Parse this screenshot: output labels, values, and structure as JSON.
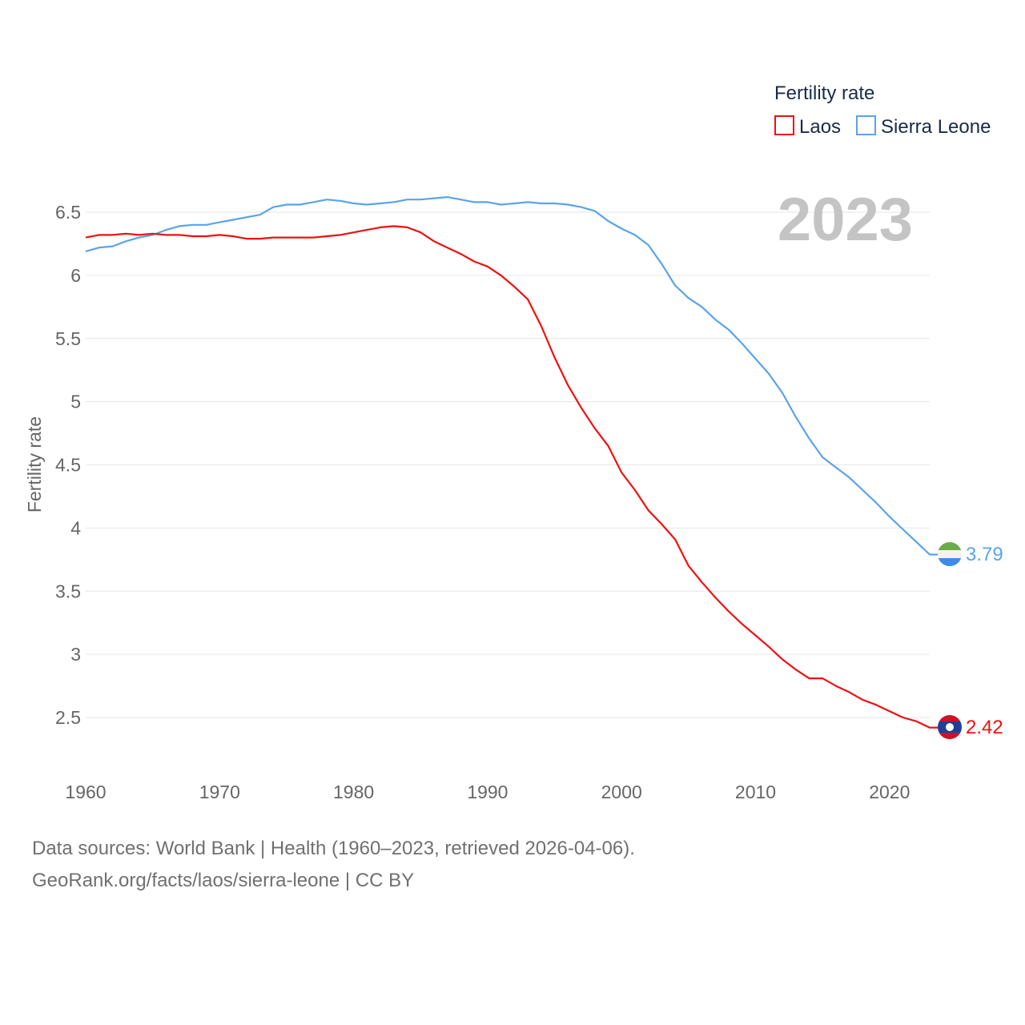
{
  "legend": {
    "title": "Fertility rate",
    "items": [
      {
        "label": "Laos",
        "color": "#ee1111"
      },
      {
        "label": "Sierra Leone",
        "color": "#5aa4e8"
      }
    ]
  },
  "year_label": "2023",
  "end_labels": {
    "laos": "2.42",
    "sierra_leone": "3.79"
  },
  "source": {
    "line1": "Data sources: World Bank | Health (1960–2023, retrieved 2026-04-06).",
    "line2": "GeoRank.org/facts/laos/sierra-leone | CC BY"
  },
  "chart_data": {
    "type": "line",
    "title": "Fertility rate",
    "xlabel": "",
    "ylabel": "Fertility rate",
    "xlim": [
      1960,
      2023
    ],
    "ylim": [
      2.2,
      6.8
    ],
    "xticks": [
      1960,
      1970,
      1980,
      1990,
      2000,
      2010,
      2020
    ],
    "yticks": [
      2.5,
      3,
      3.5,
      4,
      4.5,
      5,
      5.5,
      6,
      6.5
    ],
    "ytick_labels": [
      "2.5",
      "3",
      "3.5",
      "4",
      "4.5",
      "5",
      "5.5",
      "6",
      "6.5"
    ],
    "grid": true,
    "legend_position": "top-right",
    "x": [
      1960,
      1961,
      1962,
      1963,
      1964,
      1965,
      1966,
      1967,
      1968,
      1969,
      1970,
      1971,
      1972,
      1973,
      1974,
      1975,
      1976,
      1977,
      1978,
      1979,
      1980,
      1981,
      1982,
      1983,
      1984,
      1985,
      1986,
      1987,
      1988,
      1989,
      1990,
      1991,
      1992,
      1993,
      1994,
      1995,
      1996,
      1997,
      1998,
      1999,
      2000,
      2001,
      2002,
      2003,
      2004,
      2005,
      2006,
      2007,
      2008,
      2009,
      2010,
      2011,
      2012,
      2013,
      2014,
      2015,
      2016,
      2017,
      2018,
      2019,
      2020,
      2021,
      2022,
      2023
    ],
    "series": [
      {
        "name": "Laos",
        "color": "#ee1111",
        "values": [
          6.3,
          6.32,
          6.32,
          6.33,
          6.32,
          6.33,
          6.32,
          6.32,
          6.31,
          6.31,
          6.32,
          6.31,
          6.29,
          6.29,
          6.3,
          6.3,
          6.3,
          6.3,
          6.31,
          6.32,
          6.34,
          6.36,
          6.38,
          6.39,
          6.38,
          6.34,
          6.27,
          6.22,
          6.17,
          6.11,
          6.07,
          6.0,
          5.91,
          5.81,
          5.6,
          5.35,
          5.13,
          4.95,
          4.79,
          4.65,
          4.44,
          4.3,
          4.14,
          4.03,
          3.91,
          3.7,
          3.57,
          3.45,
          3.34,
          3.24,
          3.15,
          3.06,
          2.96,
          2.88,
          2.81,
          2.81,
          2.75,
          2.7,
          2.64,
          2.6,
          2.55,
          2.5,
          2.47,
          2.42
        ]
      },
      {
        "name": "Sierra Leone",
        "color": "#5aa4e8",
        "values": [
          6.19,
          6.22,
          6.23,
          6.27,
          6.3,
          6.32,
          6.36,
          6.39,
          6.4,
          6.4,
          6.42,
          6.44,
          6.46,
          6.48,
          6.54,
          6.56,
          6.56,
          6.58,
          6.6,
          6.59,
          6.57,
          6.56,
          6.57,
          6.58,
          6.6,
          6.6,
          6.61,
          6.62,
          6.6,
          6.58,
          6.58,
          6.56,
          6.57,
          6.58,
          6.57,
          6.57,
          6.56,
          6.54,
          6.51,
          6.43,
          6.37,
          6.32,
          6.24,
          6.09,
          5.92,
          5.82,
          5.75,
          5.65,
          5.57,
          5.46,
          5.34,
          5.22,
          5.07,
          4.88,
          4.71,
          4.56,
          4.48,
          4.4,
          4.3,
          4.2,
          4.09,
          3.99,
          3.89,
          3.79
        ]
      }
    ]
  }
}
